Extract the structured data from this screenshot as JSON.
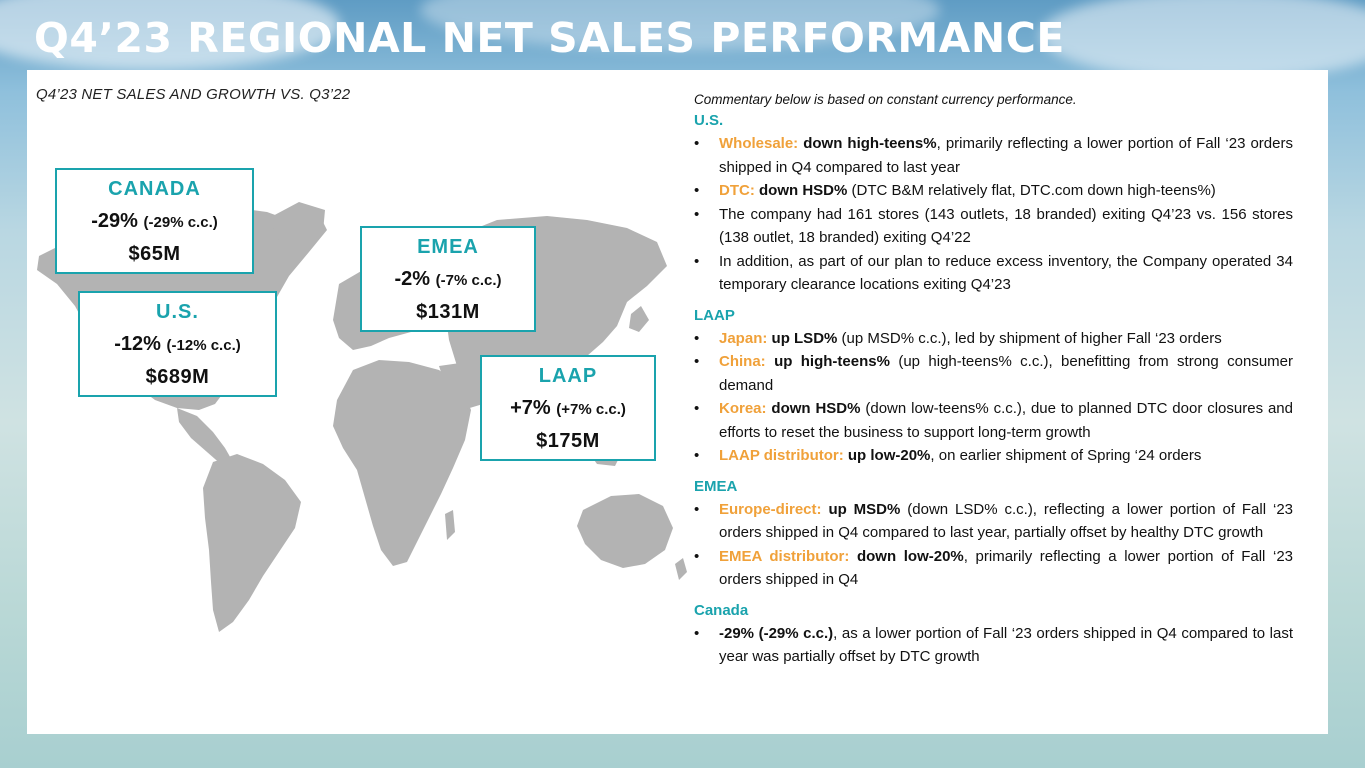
{
  "title": "Q4’23 REGIONAL NET SALES PERFORMANCE",
  "subtitle": "Q4’23 NET SALES AND GROWTH VS. Q3’22",
  "colors": {
    "accent": "#1aa3ad",
    "label": "#f0a13a",
    "map": "#b3b3b3"
  },
  "regions": {
    "canada": {
      "name": "CANADA",
      "growth": "-29%",
      "cc": "(-29% c.c.)",
      "sales": "$65M"
    },
    "us": {
      "name": "U.S.",
      "growth": "-12%",
      "cc": "(-12% c.c.)",
      "sales": "$689M"
    },
    "emea": {
      "name": "EMEA",
      "growth": "-2%",
      "cc": "(-7% c.c.)",
      "sales": "$131M"
    },
    "laap": {
      "name": "LAAP",
      "growth": "+7%",
      "cc": "(+7% c.c.)",
      "sales": "$175M"
    }
  },
  "commentary": {
    "intro": "Commentary below is based on constant currency performance.",
    "sections": [
      {
        "heading": "U.S.",
        "bullets": [
          {
            "label": "Wholesale:",
            "highlight": "down high-teens%",
            "text": ", primarily reflecting a lower portion of Fall ‘23 orders shipped in Q4 compared to last year"
          },
          {
            "label": "DTC:",
            "highlight": "down HSD%",
            "text": " (DTC B&M relatively flat, DTC.com down high-teens%)"
          },
          {
            "label": "",
            "highlight": "",
            "text": "The company had 161 stores (143 outlets, 18 branded) exiting Q4’23 vs. 156 stores (138 outlet, 18 branded) exiting Q4’22"
          },
          {
            "label": "",
            "highlight": "",
            "text": "In addition, as part of our plan to reduce excess inventory, the Company operated 34 temporary clearance locations exiting Q4’23"
          }
        ]
      },
      {
        "heading": "LAAP",
        "bullets": [
          {
            "label": "Japan:",
            "highlight": "up LSD%",
            "text": " (up MSD% c.c.), led by shipment of higher Fall ‘23 orders"
          },
          {
            "label": "China:",
            "highlight": "up high-teens%",
            "text": " (up high-teens% c.c.), benefitting from strong consumer demand"
          },
          {
            "label": "Korea:",
            "highlight": "down HSD%",
            "text": " (down low-teens% c.c.), due to planned DTC door closures and efforts to reset the business to support long-term growth"
          },
          {
            "label": "LAAP distributor:",
            "highlight": "up low-20%",
            "text": ", on earlier shipment of Spring ‘24 orders"
          }
        ]
      },
      {
        "heading": "EMEA",
        "bullets": [
          {
            "label": "Europe-direct:",
            "highlight": "up MSD%",
            "text": " (down LSD% c.c.), reflecting a lower portion of Fall ‘23 orders shipped in Q4 compared to last year, partially offset by healthy DTC growth"
          },
          {
            "label": "EMEA distributor:",
            "highlight": "down low-20%",
            "text": ", primarily reflecting a lower portion of Fall ‘23 orders shipped in Q4"
          }
        ]
      },
      {
        "heading": "Canada",
        "bullets": [
          {
            "label": "",
            "highlight": "-29% (-29% c.c.)",
            "text": ", as a lower portion of Fall ‘23 orders shipped in Q4 compared to last year was partially offset by DTC growth"
          }
        ]
      }
    ]
  }
}
